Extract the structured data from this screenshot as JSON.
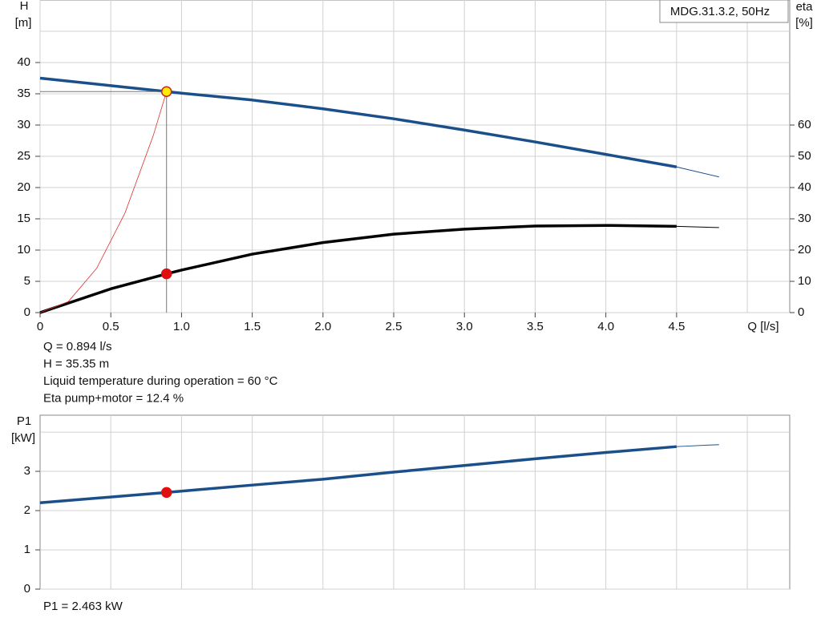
{
  "legend_text": "MDG.31.3.2, 50Hz",
  "chart_data": [
    {
      "type": "line",
      "y_label": "H",
      "y_unit": "[m]",
      "y2_label": "eta",
      "y2_unit": "[%]",
      "x_label": "Q [l/s]",
      "xlim": [
        0,
        5.3
      ],
      "xticks": [
        0,
        0.5,
        {
          "value": 1,
          "label": "1.0"
        },
        1.5,
        {
          "value": 2,
          "label": "2.0"
        },
        2.5,
        {
          "value": 3,
          "label": "3.0"
        },
        3.5,
        {
          "value": 4,
          "label": "4.0"
        },
        4.5
      ],
      "minor_xgrid": [
        5
      ],
      "ylim": [
        0,
        50
      ],
      "yticks": [
        0,
        5,
        10,
        15,
        20,
        25,
        30,
        35,
        40
      ],
      "minor_ygrid": [
        45
      ],
      "y2lim": [
        0,
        100
      ],
      "y2ticks": [
        0,
        10,
        20,
        30,
        40,
        50,
        60
      ],
      "grid": true,
      "series": [
        {
          "x": [
            0,
            0.5,
            0.894,
            1.0,
            1.5,
            2.0,
            2.5,
            3.0,
            3.5,
            4.0,
            4.5
          ],
          "values": [
            37.5,
            36.3,
            35.35,
            35.1,
            34.0,
            32.6,
            31.0,
            29.2,
            27.3,
            25.3,
            23.3
          ],
          "color": "#1a4f8a",
          "width": 3.5
        },
        {
          "x": [
            4.5,
            4.8
          ],
          "values": [
            23.3,
            21.7
          ],
          "color": "#1a4f8a",
          "width": 1
        },
        {
          "x": [
            0,
            0.5,
            0.894,
            1.0,
            1.5,
            2.0,
            2.5,
            3.0,
            3.5,
            4.0,
            4.5
          ],
          "values": [
            0,
            7.6,
            12.4,
            13.6,
            18.7,
            22.4,
            25.1,
            26.7,
            27.7,
            27.9,
            27.6
          ],
          "color": "#000000",
          "width": 3.5,
          "axis": "y2"
        },
        {
          "x": [
            4.5,
            4.8
          ],
          "values": [
            27.6,
            27.2
          ],
          "color": "#000000",
          "width": 1,
          "axis": "y2"
        },
        {
          "x": [
            0,
            0.2,
            0.4,
            0.6,
            0.8,
            0.894
          ],
          "values": [
            0,
            1.77,
            7.08,
            15.92,
            28.31,
            35.35
          ],
          "color": "#e03030",
          "width": 0.8
        }
      ],
      "points": [
        {
          "x": 0.894,
          "y": 35.35,
          "color": "#ffee00",
          "stroke": "#d02020",
          "guides": true
        },
        {
          "x": 0.894,
          "y": 12.4,
          "axis": "y2",
          "color": "#e01010",
          "stroke": "#e01010"
        }
      ],
      "notes": [
        "Q = 0.894 l/s",
        "H = 35.35 m",
        "Liquid temperature during operation = 60 °C",
        "Eta pump+motor = 12.4 %"
      ]
    },
    {
      "type": "line",
      "y_label": "P1",
      "y_unit": "[kW]",
      "xlim": [
        0,
        5.3
      ],
      "xgrid": [
        0.5,
        1,
        1.5,
        2,
        2.5,
        3,
        3.5,
        4,
        4.5,
        5
      ],
      "ylim": [
        0,
        4.43
      ],
      "yticks": [
        0,
        1,
        2,
        3
      ],
      "minor_ygrid": [
        4
      ],
      "grid": true,
      "series": [
        {
          "x": [
            0,
            0.894,
            1.5,
            2.0,
            2.5,
            3.0,
            3.5,
            4.0,
            4.5
          ],
          "values": [
            2.2,
            2.463,
            2.65,
            2.8,
            2.98,
            3.15,
            3.32,
            3.48,
            3.63
          ],
          "color": "#1a4f8a",
          "width": 3.5
        },
        {
          "x": [
            4.5,
            4.8
          ],
          "values": [
            3.63,
            3.68
          ],
          "color": "#1a4f8a",
          "width": 1
        }
      ],
      "points": [
        {
          "x": 0.894,
          "y": 2.463,
          "color": "#e01010",
          "stroke": "#e01010"
        }
      ],
      "notes": [
        "P1 = 2.463 kW"
      ]
    }
  ]
}
